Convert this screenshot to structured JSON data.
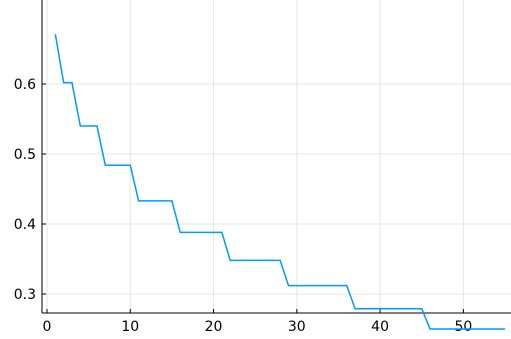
{
  "chart_data": {
    "type": "line",
    "title": "",
    "xlabel": "",
    "ylabel": "",
    "xlim": [
      0,
      55
    ],
    "ylim": [
      0.235,
      0.68
    ],
    "grid": true,
    "legend": "none",
    "line_color": "#009AFA",
    "x_ticks": [
      {
        "value": 0,
        "label": "0"
      },
      {
        "value": 10,
        "label": "10"
      },
      {
        "value": 20,
        "label": "20"
      },
      {
        "value": 30,
        "label": "30"
      },
      {
        "value": 40,
        "label": "40"
      },
      {
        "value": 50,
        "label": "50"
      }
    ],
    "y_ticks": [
      {
        "value": 0.3,
        "label": "0.3"
      },
      {
        "value": 0.4,
        "label": "0.4"
      },
      {
        "value": 0.5,
        "label": "0.5"
      },
      {
        "value": 0.6,
        "label": "0.6"
      }
    ],
    "series": [
      {
        "x": [
          1,
          2,
          3,
          4,
          5,
          6,
          7,
          8,
          9,
          10,
          11,
          12,
          13,
          14,
          15,
          16,
          17,
          18,
          19,
          20,
          21,
          22,
          23,
          24,
          25,
          26,
          27,
          28,
          29,
          30,
          31,
          32,
          33,
          34,
          35,
          36,
          37,
          38,
          39,
          40,
          41,
          42,
          43,
          44,
          45,
          46,
          47,
          48,
          49,
          50,
          51,
          52,
          53,
          54,
          55
        ],
        "y": [
          0.671,
          0.602,
          0.602,
          0.54,
          0.54,
          0.54,
          0.484,
          0.484,
          0.484,
          0.484,
          0.433,
          0.433,
          0.433,
          0.433,
          0.433,
          0.388,
          0.388,
          0.388,
          0.388,
          0.388,
          0.388,
          0.348,
          0.348,
          0.348,
          0.348,
          0.348,
          0.348,
          0.348,
          0.312,
          0.312,
          0.312,
          0.312,
          0.312,
          0.312,
          0.312,
          0.312,
          0.279,
          0.279,
          0.279,
          0.279,
          0.279,
          0.279,
          0.279,
          0.279,
          0.279,
          0.25,
          0.25,
          0.25,
          0.25,
          0.25,
          0.25,
          0.25,
          0.25,
          0.25,
          0.25
        ]
      }
    ]
  }
}
